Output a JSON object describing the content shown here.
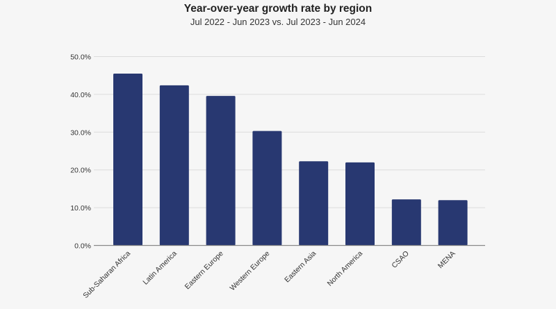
{
  "chart_data": {
    "type": "bar",
    "title": "Year-over-year growth rate by region",
    "subtitle": "Jul 2022 - Jun 2023 vs. Jul 2023 - Jun 2024",
    "categories": [
      "Sub-Saharan Africa",
      "Latin America",
      "Eastern Europe",
      "Western Europe",
      "Eastern Asia",
      "North America",
      "CSAO",
      "MENA"
    ],
    "values": [
      45.5,
      42.4,
      39.6,
      30.3,
      22.3,
      22.0,
      12.2,
      12.0
    ],
    "value_unit": "%",
    "xlabel": "",
    "ylabel": "",
    "ylim": [
      0,
      50
    ],
    "yticks": [
      "0.0%",
      "10.0%",
      "20.0%",
      "30.0%",
      "40.0%",
      "50.0%"
    ],
    "grid": true,
    "legend": "none",
    "bar_color": "#283871"
  }
}
